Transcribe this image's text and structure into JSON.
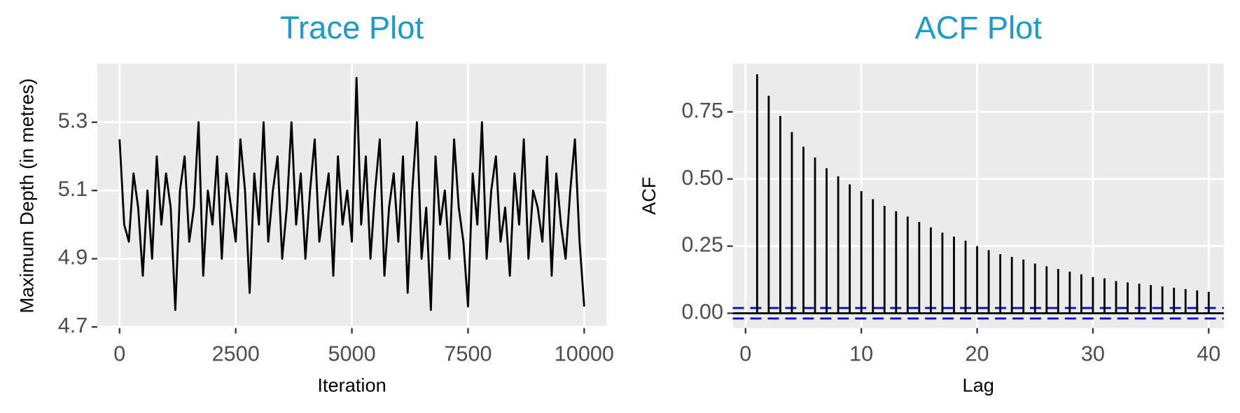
{
  "chart_data": [
    {
      "type": "line",
      "title": "Trace Plot",
      "xlabel": "Iteration",
      "ylabel": "Maximum Depth (in metres)",
      "color": "#000000",
      "grid": true,
      "x": [
        0,
        100,
        200,
        300,
        400,
        500,
        600,
        700,
        800,
        900,
        1000,
        1100,
        1200,
        1300,
        1400,
        1500,
        1600,
        1700,
        1800,
        1900,
        2000,
        2100,
        2200,
        2300,
        2400,
        2500,
        2600,
        2700,
        2800,
        2900,
        3000,
        3100,
        3200,
        3300,
        3400,
        3500,
        3600,
        3700,
        3800,
        3900,
        4000,
        4100,
        4200,
        4300,
        4400,
        4500,
        4600,
        4700,
        4800,
        4900,
        5000,
        5100,
        5200,
        5300,
        5400,
        5500,
        5600,
        5700,
        5800,
        5900,
        6000,
        6100,
        6200,
        6300,
        6400,
        6500,
        6600,
        6700,
        6800,
        6900,
        7000,
        7100,
        7200,
        7300,
        7400,
        7500,
        7600,
        7700,
        7800,
        7900,
        8000,
        8100,
        8200,
        8300,
        8400,
        8500,
        8600,
        8700,
        8800,
        8900,
        9000,
        9100,
        9200,
        9300,
        9400,
        9500,
        9600,
        9700,
        9800,
        9900,
        10000
      ],
      "values": [
        5.25,
        5.0,
        4.95,
        5.15,
        5.05,
        4.85,
        5.1,
        4.9,
        5.2,
        5.0,
        5.15,
        5.05,
        4.75,
        5.1,
        5.2,
        4.95,
        5.05,
        5.3,
        4.85,
        5.1,
        5.0,
        5.2,
        4.9,
        5.15,
        5.05,
        4.95,
        5.25,
        5.1,
        4.8,
        5.15,
        5.0,
        5.3,
        4.95,
        5.1,
        5.2,
        4.9,
        5.05,
        5.3,
        5.0,
        5.15,
        4.9,
        5.1,
        5.25,
        4.95,
        5.05,
        5.15,
        4.85,
        5.2,
        5.0,
        5.1,
        4.95,
        5.43,
        5.0,
        5.2,
        4.9,
        5.1,
        5.25,
        4.85,
        5.05,
        5.15,
        4.95,
        5.2,
        4.8,
        5.1,
        5.3,
        4.9,
        5.05,
        4.75,
        5.2,
        5.0,
        5.1,
        4.9,
        5.25,
        5.05,
        4.95,
        4.76,
        5.15,
        5.0,
        5.3,
        4.9,
        5.1,
        5.2,
        4.95,
        5.05,
        4.85,
        5.15,
        5.0,
        5.25,
        4.9,
        5.1,
        5.05,
        4.95,
        5.2,
        4.85,
        5.15,
        5.0,
        4.9,
        5.1,
        5.25,
        4.95,
        4.76
      ],
      "xlim": [
        -480,
        10480
      ],
      "ylim": [
        4.697,
        5.472
      ],
      "xticks": [
        0,
        2500,
        5000,
        7500,
        10000
      ],
      "yticks": [
        4.7,
        4.9,
        5.1,
        5.3
      ]
    },
    {
      "type": "stem",
      "title": "ACF Plot",
      "xlabel": "Lag",
      "ylabel": "ACF",
      "color": "#000000",
      "grid": true,
      "x": [
        1,
        2,
        3,
        4,
        5,
        6,
        7,
        8,
        9,
        10,
        11,
        12,
        13,
        14,
        15,
        16,
        17,
        18,
        19,
        20,
        21,
        22,
        23,
        24,
        25,
        26,
        27,
        28,
        29,
        30,
        31,
        32,
        33,
        34,
        35,
        36,
        37,
        38,
        39,
        40
      ],
      "values": [
        0.89,
        0.81,
        0.735,
        0.675,
        0.62,
        0.58,
        0.54,
        0.51,
        0.48,
        0.455,
        0.425,
        0.4,
        0.38,
        0.36,
        0.34,
        0.32,
        0.3,
        0.285,
        0.27,
        0.25,
        0.235,
        0.22,
        0.21,
        0.2,
        0.185,
        0.175,
        0.165,
        0.155,
        0.145,
        0.135,
        0.13,
        0.12,
        0.115,
        0.11,
        0.105,
        0.1,
        0.095,
        0.09,
        0.085,
        0.08
      ],
      "reference_lines": [
        {
          "value": 0,
          "color": "#000000",
          "dashed": false
        },
        {
          "value": 0.0196,
          "color": "#0000CC",
          "dashed": true
        },
        {
          "value": -0.0196,
          "color": "#0000CC",
          "dashed": true
        }
      ],
      "xlim": [
        -1.1,
        41.3
      ],
      "ylim": [
        -0.055,
        0.93
      ],
      "xticks": [
        0,
        10,
        20,
        30,
        40
      ],
      "yticks": [
        {
          "value": 0,
          "label": "0.00"
        },
        0.25,
        {
          "value": 0.5,
          "label": "0.50"
        },
        0.75
      ]
    }
  ]
}
